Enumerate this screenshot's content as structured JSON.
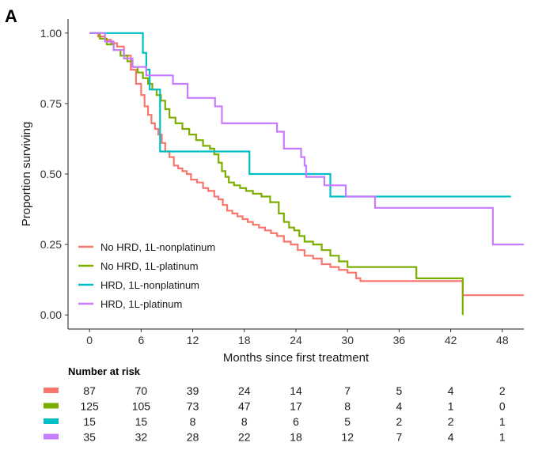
{
  "panel_label": "A",
  "risk_table": {
    "title": "Number at risk",
    "times": [
      0,
      6,
      12,
      18,
      24,
      30,
      36,
      42,
      48
    ],
    "rows": [
      {
        "series": "No HRD, 1L-nonplatinum",
        "color": "#F8766D",
        "values": [
          "87",
          "70",
          "39",
          "24",
          "14",
          "7",
          "5",
          "4",
          "2"
        ]
      },
      {
        "series": "No HRD, 1L-platinum",
        "color": "#7CAE00",
        "values": [
          "125",
          "105",
          "73",
          "47",
          "17",
          "8",
          "4",
          "1",
          "0"
        ]
      },
      {
        "series": "HRD, 1L-nonplatinum",
        "color": "#00BFC4",
        "values": [
          "15",
          "15",
          "8",
          "8",
          "6",
          "5",
          "2",
          "2",
          "1"
        ]
      },
      {
        "series": "HRD, 1L-platinum",
        "color": "#C77CFF",
        "values": [
          "35",
          "32",
          "28",
          "22",
          "18",
          "12",
          "7",
          "4",
          "1"
        ]
      }
    ]
  },
  "chart_data": {
    "type": "line",
    "subtype": "kaplan-meier step",
    "xlabel": "Months since first treatment",
    "ylabel": "Proportion surviving",
    "xlim": [
      -2.5,
      50.5
    ],
    "ylim": [
      -0.05,
      1.05
    ],
    "x_ticks": [
      0,
      6,
      12,
      18,
      24,
      30,
      36,
      42,
      48
    ],
    "x_tick_labels": [
      "0",
      "6",
      "12",
      "18",
      "24",
      "30",
      "36",
      "42",
      "48"
    ],
    "y_ticks": [
      0,
      0.25,
      0.5,
      0.75,
      1
    ],
    "y_tick_labels": [
      "0.00",
      "0.25",
      "0.50",
      "0.75",
      "1.00"
    ],
    "grid": false,
    "legend": "bottom-left inside",
    "series": [
      {
        "name": "No HRD, 1L-nonplatinum",
        "color": "#F8766D",
        "x": [
          0,
          1,
          1.8,
          2.5,
          3.2,
          4,
          4.8,
          5.4,
          6,
          6.4,
          6.8,
          7.2,
          7.6,
          8,
          8.4,
          8.8,
          9.3,
          9.8,
          10.3,
          10.8,
          11.3,
          11.8,
          12.5,
          13.2,
          13.8,
          14.5,
          15,
          15.5,
          16,
          16.6,
          17.2,
          17.8,
          18.4,
          19,
          19.7,
          20.4,
          21.1,
          21.8,
          22.6,
          23.4,
          24.2,
          25,
          26,
          27,
          28,
          29,
          30,
          31,
          31.5,
          43.4,
          50.5
        ],
        "y": [
          1,
          0.988,
          0.976,
          0.964,
          0.952,
          0.92,
          0.87,
          0.82,
          0.78,
          0.74,
          0.71,
          0.68,
          0.66,
          0.64,
          0.61,
          0.58,
          0.56,
          0.53,
          0.52,
          0.51,
          0.5,
          0.48,
          0.47,
          0.45,
          0.44,
          0.42,
          0.41,
          0.39,
          0.37,
          0.36,
          0.35,
          0.34,
          0.33,
          0.32,
          0.31,
          0.3,
          0.29,
          0.28,
          0.26,
          0.25,
          0.23,
          0.21,
          0.2,
          0.18,
          0.17,
          0.16,
          0.15,
          0.13,
          0.12,
          0.07,
          0.07
        ]
      },
      {
        "name": "No HRD, 1L-platinum",
        "color": "#7CAE00",
        "x": [
          0,
          1.2,
          2,
          2.8,
          3.6,
          4.4,
          5,
          5.6,
          6.2,
          6.8,
          7.3,
          7.8,
          8.3,
          8.8,
          9.3,
          10,
          10.8,
          11.6,
          12.4,
          13.2,
          14,
          14.5,
          15,
          15.4,
          15.8,
          16.2,
          16.8,
          17.5,
          18.2,
          19,
          20,
          21,
          22,
          22.6,
          23.2,
          23.8,
          24.4,
          25,
          26,
          27,
          28,
          29,
          30,
          31,
          38,
          43.3,
          43.4
        ],
        "y": [
          1,
          0.98,
          0.96,
          0.94,
          0.92,
          0.9,
          0.88,
          0.86,
          0.84,
          0.82,
          0.8,
          0.78,
          0.76,
          0.73,
          0.7,
          0.68,
          0.66,
          0.64,
          0.62,
          0.6,
          0.59,
          0.57,
          0.54,
          0.51,
          0.49,
          0.47,
          0.46,
          0.45,
          0.44,
          0.43,
          0.42,
          0.4,
          0.36,
          0.33,
          0.31,
          0.3,
          0.28,
          0.26,
          0.25,
          0.23,
          0.21,
          0.19,
          0.17,
          0.17,
          0.13,
          0.13,
          0
        ]
      },
      {
        "name": "HRD, 1L-nonplatinum",
        "color": "#00BFC4",
        "x": [
          0,
          6.2,
          6.6,
          7,
          8.2,
          18.6,
          28,
          49
        ],
        "y": [
          1,
          0.93,
          0.87,
          0.8,
          0.58,
          0.5,
          0.42,
          0.42
        ]
      },
      {
        "name": "HRD, 1L-platinum",
        "color": "#C77CFF",
        "x": [
          0,
          1.8,
          2.8,
          4,
          5,
          6.6,
          9.7,
          11.4,
          14.6,
          15.4,
          21.8,
          22.6,
          24.6,
          25,
          25.2,
          27.3,
          29.8,
          33.2,
          46.9,
          50.5
        ],
        "y": [
          1,
          0.97,
          0.94,
          0.91,
          0.88,
          0.85,
          0.82,
          0.77,
          0.74,
          0.68,
          0.65,
          0.59,
          0.56,
          0.53,
          0.49,
          0.46,
          0.42,
          0.38,
          0.25,
          0.25
        ]
      }
    ]
  }
}
